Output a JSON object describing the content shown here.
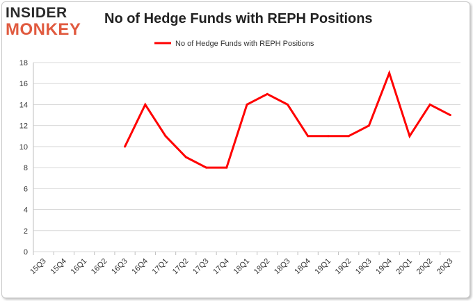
{
  "logo": {
    "line1": "INSIDER",
    "line2": "MONKEY"
  },
  "colors": {
    "line": "#ff0000",
    "grid": "#d9d9d9",
    "logo_dark": "#2b2b2b",
    "logo_accent": "#e05a3f"
  },
  "chart_data": {
    "type": "line",
    "title": "No of Hedge Funds with REPH Positions",
    "xlabel": "",
    "ylabel": "",
    "ylim": [
      0,
      18
    ],
    "yticks": [
      0,
      2,
      4,
      6,
      8,
      10,
      12,
      14,
      16,
      18
    ],
    "grid": true,
    "legend_position": "top-center",
    "categories": [
      "15Q3",
      "15Q4",
      "16Q1",
      "16Q2",
      "16Q3",
      "16Q4",
      "17Q1",
      "17Q2",
      "17Q3",
      "17Q4",
      "18Q1",
      "18Q2",
      "18Q3",
      "18Q4",
      "19Q1",
      "19Q2",
      "19Q3",
      "19Q4",
      "20Q1",
      "20Q2",
      "20Q3"
    ],
    "series": [
      {
        "name": "No of Hedge Funds with REPH Positions",
        "values": [
          null,
          null,
          null,
          null,
          10,
          14,
          11,
          9,
          8,
          8,
          14,
          15,
          14,
          11,
          11,
          11,
          12,
          17,
          11,
          14,
          13
        ]
      }
    ]
  }
}
